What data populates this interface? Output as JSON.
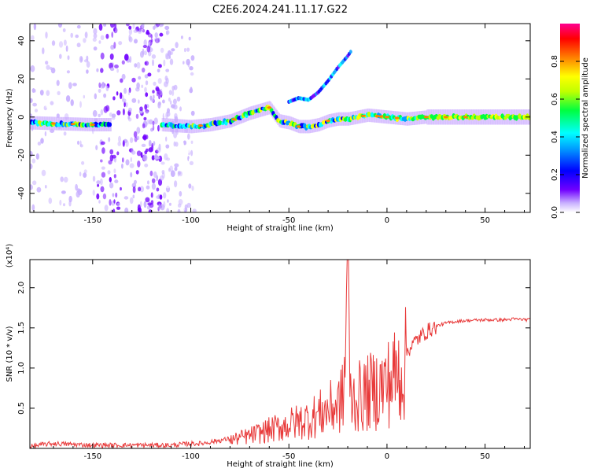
{
  "title": "C2E6.2024.241.11.17.G22",
  "chart_data": [
    {
      "type": "heatmap",
      "xlabel": "Height of straight line (km)",
      "ylabel": "Frequency (Hz)",
      "xlim": [
        -182,
        73
      ],
      "ylim": [
        -50,
        49
      ],
      "xticks": [
        -150,
        -100,
        -50,
        0,
        50
      ],
      "yticks": [
        -40,
        -20,
        0,
        20,
        40
      ],
      "colorbar": {
        "label": "Normalized spectral amplitude",
        "range": [
          0.0,
          1.0
        ],
        "ticks": [
          0.0,
          0.2,
          0.4,
          0.6,
          0.8
        ],
        "colors": [
          "#ffffff",
          "#a070ff",
          "#5000e0",
          "#0000ff",
          "#00ffff",
          "#00ff00",
          "#ffff00",
          "#ff8000",
          "#ff0000",
          "#ff0080"
        ]
      },
      "ridge": {
        "x": [
          -182,
          -150,
          -130,
          -115,
          -100,
          -90,
          -80,
          -70,
          -60,
          -55,
          -50,
          -45,
          -40,
          -35,
          -30,
          -25,
          -20,
          -15,
          -10,
          0,
          10,
          20,
          30,
          40,
          50,
          60,
          73
        ],
        "y": [
          -3,
          -4,
          -4,
          -4,
          -5,
          -4,
          -2,
          2,
          5,
          -2,
          -3,
          -5,
          -5,
          -4,
          -2,
          -1,
          -1,
          0,
          1,
          0,
          -1,
          0,
          0,
          0,
          0,
          0,
          0
        ]
      },
      "upper_streak": {
        "x": [
          -50,
          -45,
          -40,
          -35,
          -30,
          -25,
          -20,
          -18
        ],
        "y": [
          8,
          10,
          9,
          13,
          19,
          26,
          32,
          35
        ]
      }
    },
    {
      "type": "line",
      "xlabel": "Height of straight line (km)",
      "ylabel": "SNR (10 * v/v)",
      "multiplier": "(x10⁴)",
      "xlim": [
        -182,
        73
      ],
      "ylim": [
        0,
        2.35
      ],
      "xticks": [
        -150,
        -100,
        -50,
        0,
        50
      ],
      "yticks": [
        0.5,
        1.0,
        1.5,
        2.0
      ],
      "line_color": "#e83a3a",
      "series": [
        {
          "x": [
            -182,
            -175,
            -170,
            -160,
            -150,
            -140,
            -130,
            -120,
            -110,
            -105,
            -100,
            -95,
            -90,
            -85,
            -80,
            -75,
            -70,
            -65,
            -60,
            -55,
            -50,
            -45,
            -40,
            -35,
            -30,
            -25,
            -22,
            -20,
            -19,
            -18,
            -15,
            -10,
            -5,
            0,
            5,
            10,
            15,
            20,
            25,
            30,
            35,
            40,
            50,
            60,
            65,
            73
          ],
          "y": [
            0.02,
            0.05,
            0.06,
            0.05,
            0.04,
            0.04,
            0.04,
            0.04,
            0.04,
            0.05,
            0.06,
            0.06,
            0.08,
            0.1,
            0.12,
            0.15,
            0.18,
            0.22,
            0.26,
            0.3,
            0.34,
            0.38,
            0.42,
            0.48,
            0.55,
            0.62,
            0.75,
            2.35,
            0.8,
            0.7,
            0.72,
            0.78,
            0.85,
            0.92,
            1.05,
            1.2,
            1.35,
            1.45,
            1.52,
            1.56,
            1.58,
            1.59,
            1.6,
            1.6,
            1.61,
            1.6
          ]
        }
      ]
    }
  ]
}
